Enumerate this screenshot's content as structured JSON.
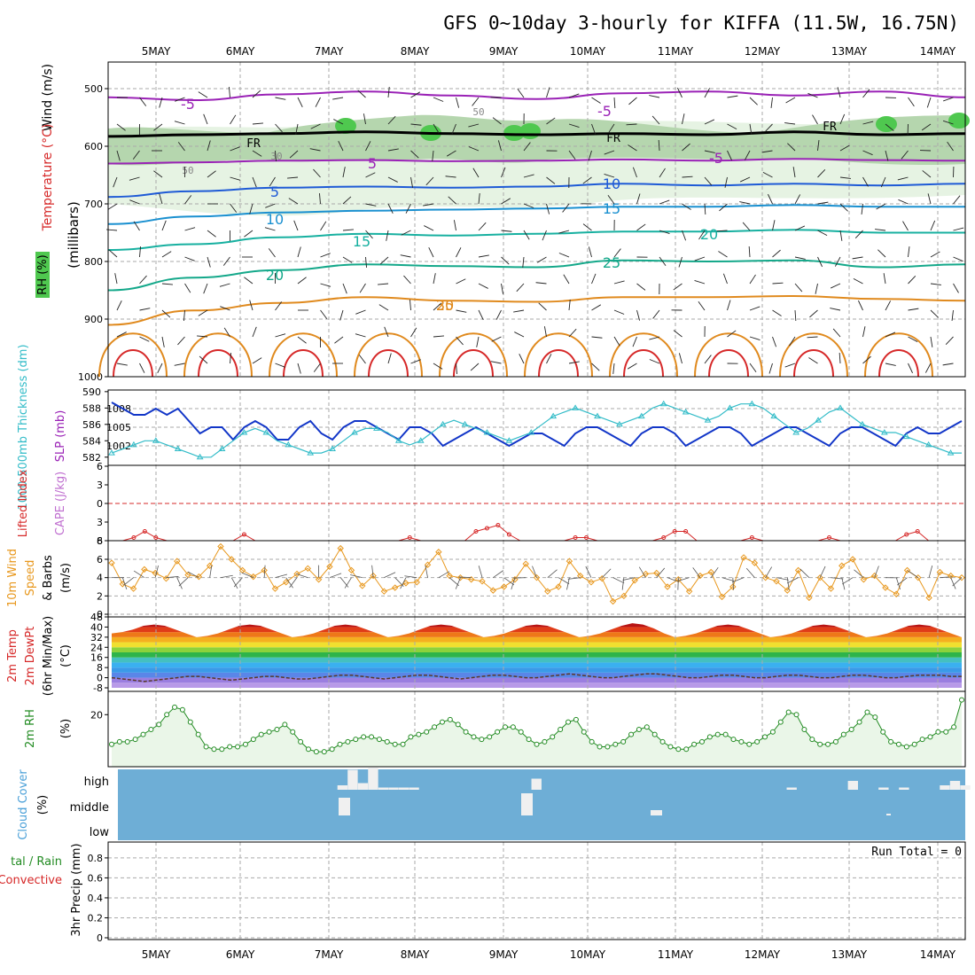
{
  "title": "GFS 0~10day 3-hourly for KIFFA (11.5W, 16.75N)",
  "colors": {
    "temp_red": "#d62828",
    "temp_orange": "#e08a1e",
    "temp_teal": "#17b0a0",
    "temp_blue": "#1e5ad6",
    "temp_purple": "#9a22b6",
    "slp": "#1236c8",
    "thickness": "#33bcc8",
    "li": "#d62828",
    "wind10": "#e8981e",
    "cloud": "#6eaed6",
    "rh": "#228b22",
    "freeze": "#000000"
  },
  "chart_data": [
    {
      "type": "line",
      "panel": "upper-air",
      "ylabel": "Temperature (°C)",
      "ylabel_rh": "RH (%)",
      "ylabel_wind": "Wind (m/s)",
      "ylabel_unit": "(millibars)",
      "x": [
        "5MAY",
        "6MAY",
        "7MAY",
        "8MAY",
        "9MAY",
        "10MAY",
        "11MAY",
        "12MAY",
        "13MAY",
        "14MAY"
      ],
      "y_ticks": [
        "500",
        "600",
        "700",
        "800",
        "900",
        "1000"
      ],
      "ylim": [
        450,
        1000
      ],
      "isotherm_labels": [
        "-5",
        "-5",
        "5",
        "-5",
        "5",
        "10",
        "10",
        "15",
        "15",
        "20",
        "20",
        "25",
        "25",
        "30"
      ],
      "freezing_label": "FR",
      "rh_labels": [
        "50",
        "30",
        "50"
      ],
      "series": [
        {
          "name": "-5",
          "level_mb": [
            515,
            520,
            510,
            505,
            512,
            518,
            508,
            505,
            512,
            505,
            515
          ]
        },
        {
          "name": "0",
          "level_mb": [
            583,
            580,
            578,
            575,
            578,
            580,
            578,
            580,
            575,
            580,
            578
          ]
        },
        {
          "name": "5",
          "level_mb": [
            630,
            628,
            625,
            624,
            626,
            625,
            623,
            625,
            622,
            624,
            625
          ]
        },
        {
          "name": "10",
          "level_mb": [
            688,
            678,
            672,
            670,
            672,
            670,
            665,
            668,
            665,
            668,
            665
          ]
        },
        {
          "name": "15",
          "level_mb": [
            735,
            722,
            715,
            712,
            710,
            708,
            705,
            705,
            702,
            705,
            705
          ]
        },
        {
          "name": "20",
          "level_mb": [
            780,
            770,
            758,
            752,
            755,
            752,
            748,
            748,
            745,
            750,
            750
          ]
        },
        {
          "name": "25",
          "level_mb": [
            850,
            828,
            815,
            805,
            808,
            810,
            798,
            800,
            798,
            810,
            805
          ]
        },
        {
          "name": "30",
          "level_mb": [
            910,
            885,
            872,
            862,
            868,
            870,
            862,
            862,
            860,
            865,
            868
          ]
        }
      ]
    },
    {
      "type": "line",
      "panel": "slp-thickness",
      "ylabel": "1000-500mb Thickness (dm)",
      "ylabel2": "SLP (mb)",
      "y_ticks_left": [
        "582",
        "584",
        "586",
        "588",
        "590"
      ],
      "y_ticks_right": [
        "1002",
        "1005",
        "1008"
      ],
      "series": [
        {
          "name": "SLP",
          "values": [
            1009,
            1008,
            1007,
            1007,
            1008,
            1007,
            1008,
            1006,
            1004,
            1005,
            1005,
            1003,
            1005,
            1006,
            1005,
            1003,
            1003,
            1005,
            1006,
            1004,
            1003,
            1005,
            1006,
            1006,
            1005,
            1004,
            1003,
            1005,
            1005,
            1004,
            1002,
            1003,
            1004,
            1005,
            1004,
            1003,
            1002,
            1003,
            1004,
            1004,
            1003,
            1002,
            1004,
            1005,
            1005,
            1004,
            1003,
            1002,
            1004,
            1005,
            1005,
            1004,
            1002,
            1003,
            1004,
            1005,
            1005,
            1004,
            1002,
            1003,
            1004,
            1005,
            1005,
            1004,
            1003,
            1002,
            1004,
            1005,
            1005,
            1004,
            1003,
            1002,
            1004,
            1005,
            1004,
            1004,
            1005,
            1006
          ]
        },
        {
          "name": "Thickness",
          "values": [
            582.5,
            583,
            583.5,
            584,
            584,
            583.5,
            583,
            582.5,
            582,
            582,
            583,
            584,
            585,
            585.5,
            585,
            584,
            583.5,
            583,
            582.5,
            582.5,
            583,
            584,
            585,
            585.5,
            585.5,
            585,
            584,
            583.5,
            584,
            585,
            586,
            586.5,
            586,
            585.5,
            585,
            584.5,
            584,
            584.5,
            585,
            586,
            587,
            587.5,
            588,
            587.5,
            587,
            586.5,
            586,
            586.5,
            587,
            588,
            588.5,
            588,
            587.5,
            587,
            586.5,
            587,
            588,
            588.5,
            588.5,
            588,
            587,
            586,
            585,
            585.5,
            586.5,
            587.5,
            588,
            587,
            586,
            585.5,
            585,
            585,
            584.5,
            584,
            583.5,
            583,
            582.5,
            582.5
          ]
        }
      ]
    },
    {
      "type": "line",
      "panel": "lifted-index",
      "ylabel": "Lifted Index",
      "ylabel2": "CAPE (J/kg)",
      "y_ticks": [
        "6",
        "3",
        "0",
        "3",
        "6"
      ],
      "y_tick_right": "8",
      "series": [
        {
          "name": "Lifted Index",
          "values": [
            6,
            6,
            5.5,
            4.5,
            5.5,
            6,
            6,
            6,
            6,
            6,
            6,
            6,
            5,
            6,
            6,
            6,
            6,
            6,
            6,
            6,
            6,
            6,
            6,
            6,
            6,
            6,
            6,
            5.5,
            6,
            6,
            6,
            6,
            6,
            4.5,
            4,
            3.5,
            5,
            6,
            6,
            6,
            6,
            6,
            5.5,
            5.5,
            6,
            6,
            6,
            6,
            6,
            6,
            5.5,
            4.5,
            4.5,
            6,
            6,
            6,
            6,
            6,
            5.5,
            6,
            6,
            6,
            6,
            6,
            6,
            5.5,
            6,
            6,
            6,
            6,
            6,
            6,
            5,
            4.5,
            6,
            6,
            6,
            6
          ]
        }
      ]
    },
    {
      "type": "line",
      "panel": "wind10m",
      "ylabel": "10m Wind Speed & Barbs (m/s)",
      "ylabel_parts": [
        "10m Wind",
        "Speed",
        "& Barbs",
        "(m/s)"
      ],
      "y_ticks": [
        "0",
        "2",
        "4",
        "6"
      ],
      "series": [
        {
          "name": "Speed",
          "values": [
            5.6,
            3.3,
            2.8,
            4.9,
            4.5,
            3.9,
            5.8,
            4.3,
            4.1,
            5.3,
            7.4,
            6.0,
            4.8,
            4.1,
            4.8,
            2.8,
            3.5,
            4.4,
            5.0,
            3.8,
            5.2,
            7.2,
            4.8,
            3.1,
            4.2,
            2.5,
            2.9,
            3.4,
            3.5,
            5.4,
            6.8,
            4.2,
            4.0,
            3.8,
            3.6,
            2.6,
            3.0,
            3.8,
            5.5,
            4.0,
            2.5,
            3.0,
            5.8,
            4.2,
            3.5,
            3.9,
            1.4,
            2.0,
            3.7,
            4.4,
            4.5,
            3.0,
            3.8,
            2.5,
            4.2,
            4.6,
            1.9,
            3.0,
            6.2,
            5.6,
            4.0,
            3.6,
            2.6,
            4.8,
            1.8,
            4.0,
            2.8,
            5.3,
            6.0,
            3.8,
            4.2,
            2.9,
            2.2,
            4.8,
            4.0,
            1.8,
            4.6,
            4.2,
            4.0
          ]
        }
      ]
    },
    {
      "type": "area",
      "panel": "2m-temp",
      "ylabel_parts": [
        "2m Temp",
        "2m DewPt",
        "(6hr Min/Max)",
        "(°C)"
      ],
      "y_ticks": [
        "-8",
        "0",
        "8",
        "16",
        "24",
        "32",
        "40",
        "48"
      ],
      "series": [
        {
          "name": "2m Temp",
          "values": [
            35,
            36,
            38,
            41,
            42,
            41,
            38,
            35,
            32,
            33,
            35,
            38,
            41,
            42,
            41,
            38,
            35,
            32,
            33,
            35,
            38,
            41,
            42,
            41,
            38,
            35,
            32,
            33,
            35,
            38,
            41,
            42,
            41,
            38,
            35,
            32,
            33,
            35,
            38,
            41,
            42,
            41,
            38,
            35,
            32,
            33,
            35,
            38,
            41,
            43,
            42,
            39,
            35,
            32,
            33,
            35,
            38,
            41,
            42,
            41,
            38,
            35,
            32,
            33,
            35,
            38,
            41,
            42,
            41,
            38,
            35,
            32,
            33,
            35,
            38,
            41,
            42,
            41,
            38,
            35,
            32
          ]
        },
        {
          "name": "2m DewPt",
          "values": [
            0,
            -1,
            -2,
            -3,
            -2,
            -1,
            0,
            1,
            1,
            0,
            -1,
            -2,
            -1,
            0,
            1,
            1,
            0,
            -1,
            -1,
            0,
            1,
            2,
            2,
            1,
            0,
            -1,
            0,
            1,
            2,
            2,
            1,
            0,
            -1,
            0,
            1,
            2,
            2,
            1,
            0,
            0,
            1,
            2,
            3,
            2,
            1,
            0,
            0,
            1,
            2,
            3,
            3,
            2,
            1,
            0,
            0,
            1,
            2,
            2,
            1,
            0,
            0,
            1,
            2,
            2,
            1,
            0,
            0,
            1,
            2,
            2,
            1,
            0,
            0,
            1,
            2,
            2,
            2,
            1,
            1
          ]
        }
      ]
    },
    {
      "type": "line",
      "panel": "2m-rh",
      "ylabel": "2m RH (%)",
      "ylabel_parts": [
        "2m RH",
        "(%)"
      ],
      "y_ticks": [
        "20"
      ],
      "series": [
        {
          "name": "2m RH",
          "values": [
            8,
            9,
            9,
            10,
            12,
            14,
            16,
            20,
            23,
            22,
            17,
            12,
            7,
            6,
            6,
            7,
            7,
            8,
            10,
            12,
            13,
            14,
            16,
            13,
            9,
            6,
            5,
            5,
            6,
            8,
            9,
            10,
            11,
            11,
            10,
            9,
            8,
            8,
            11,
            12,
            13,
            15,
            17,
            18,
            16,
            13,
            11,
            10,
            11,
            13,
            15,
            15,
            13,
            10,
            8,
            9,
            11,
            14,
            17,
            18,
            13,
            9,
            7,
            7,
            8,
            9,
            12,
            14,
            15,
            12,
            9,
            7,
            6,
            6,
            8,
            9,
            11,
            12,
            12,
            10,
            9,
            8,
            9,
            11,
            13,
            17,
            21,
            20,
            14,
            10,
            8,
            8,
            9,
            12,
            14,
            17,
            21,
            19,
            13,
            9,
            8,
            7,
            8,
            10,
            11,
            13,
            13,
            15,
            26
          ]
        }
      ]
    },
    {
      "type": "bar",
      "panel": "cloud-cover",
      "ylabel": "Cloud Cover (%)",
      "ylabel_parts": [
        "Cloud Cover",
        "(%)"
      ],
      "y_ticks": [
        "high",
        "middle",
        "low"
      ],
      "high_pct": [
        0,
        0,
        0,
        0,
        0,
        0,
        0,
        0,
        0,
        0,
        0,
        0,
        0,
        0,
        0,
        0,
        0,
        0,
        0,
        0,
        0,
        0,
        10,
        45,
        15,
        50,
        5,
        5,
        5,
        5,
        0,
        0,
        0,
        0,
        0,
        0,
        0,
        0,
        0,
        0,
        0,
        25,
        0,
        0,
        0,
        0,
        0,
        0,
        0,
        0,
        0,
        0,
        0,
        0,
        0,
        0,
        0,
        0,
        0,
        0,
        0,
        0,
        0,
        0,
        0,
        0,
        5,
        0,
        0,
        0,
        0,
        0,
        20,
        0,
        0,
        5,
        0,
        5,
        0,
        0,
        0,
        10,
        20,
        10
      ],
      "middle_pct": [
        0,
        0,
        0,
        0,
        0,
        0,
        0,
        0,
        0,
        0,
        0,
        0,
        0,
        0,
        0,
        0,
        0,
        0,
        0,
        0,
        0,
        0,
        0,
        0,
        0,
        0,
        0,
        0,
        0,
        0,
        0,
        0,
        0,
        0,
        0,
        0,
        0,
        0,
        0,
        0,
        0,
        0,
        0,
        0,
        0,
        0,
        0,
        0,
        0,
        0,
        0,
        0,
        0,
        0,
        0,
        0,
        0,
        0,
        0,
        0,
        0,
        0,
        0,
        0,
        0,
        0,
        0,
        0,
        0,
        0,
        0,
        0,
        0,
        0,
        0,
        0,
        0,
        0,
        0,
        0,
        0,
        0,
        0,
        0
      ],
      "low_pct": [
        0,
        0,
        0,
        0,
        0,
        0,
        0,
        0,
        0,
        0,
        0,
        0,
        0,
        0,
        0,
        0,
        0,
        0,
        0,
        0,
        0,
        0,
        0,
        0,
        0,
        0,
        0,
        0,
        0,
        0,
        0,
        0,
        0,
        0,
        0,
        0,
        0,
        0,
        0,
        0,
        0,
        0,
        0,
        0,
        0,
        0,
        0,
        0,
        0,
        0,
        0,
        0,
        0,
        0,
        0,
        0,
        0,
        0,
        0,
        0,
        0,
        0,
        0,
        0,
        0,
        0,
        0,
        0,
        0,
        0,
        0,
        0,
        0,
        0,
        0,
        0,
        0,
        0,
        0,
        0,
        0,
        0,
        0,
        0
      ]
    },
    {
      "type": "bar",
      "panel": "precip",
      "ylabel": "3hr Precip (mm)",
      "ylabel_left": [
        "tal / Rain",
        "Convective"
      ],
      "y_ticks": [
        "0",
        "0.2",
        "0.4",
        "0.6",
        "0.8"
      ],
      "ylim": [
        0,
        0.95
      ],
      "run_total_label": "Run Total = 0",
      "values": []
    }
  ]
}
